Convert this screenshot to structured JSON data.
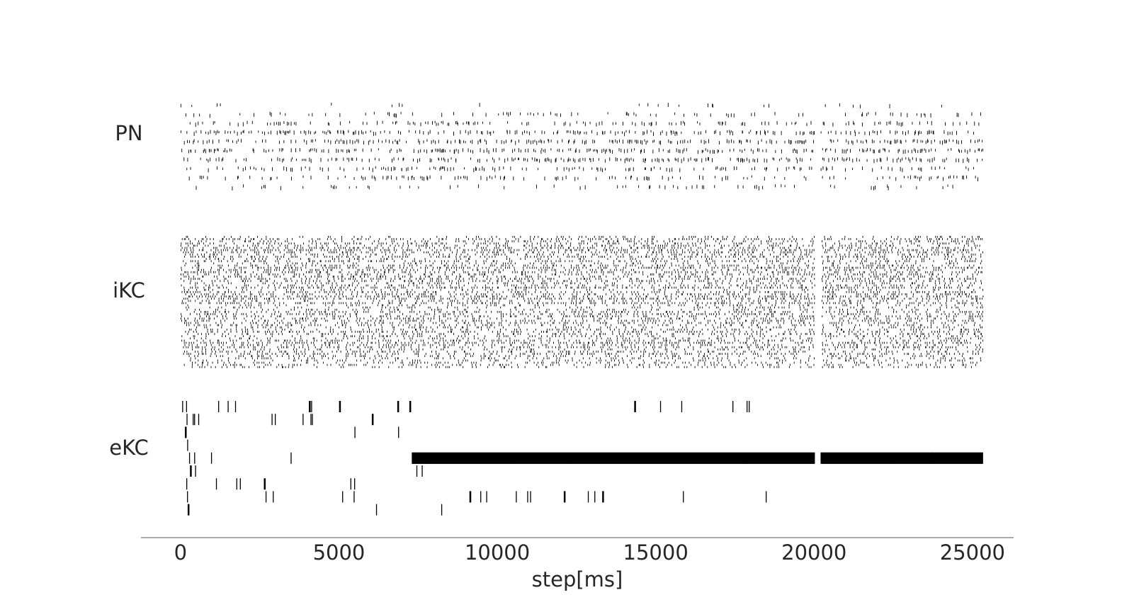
{
  "chart_data": {
    "type": "raster",
    "xlabel": "step[ms]",
    "xlim": [
      -1250,
      26300
    ],
    "xticks": [
      0,
      5000,
      10000,
      15000,
      20000,
      25000
    ],
    "xtick_labels": [
      "0",
      "5000",
      "10000",
      "15000",
      "20000",
      "25000"
    ],
    "data_range": [
      0,
      25300
    ],
    "gap": [
      20000,
      20200
    ],
    "grid": false,
    "groups": [
      {
        "label": "PN",
        "rows": 10,
        "density": "dense",
        "description_rows": "sparse top and bottom rows, dense middle rows"
      },
      {
        "label": "iKC",
        "rows": 60,
        "density": "very dense"
      },
      {
        "label": "eKC",
        "rows": 9,
        "rate_per_1000ms": [
          0.9,
          0.5,
          0.6,
          0.35,
          0.5,
          0.7,
          0.3,
          0.7,
          0.45
        ],
        "row_end_ms": [
          19900,
          7200,
          8600,
          9200,
          25300,
          9200,
          6000,
          19000,
          9200
        ],
        "row_burst": [
          null,
          null,
          null,
          null,
          {
            "start": 7300,
            "end": 25300,
            "note": "continuous firing from ~7300 ms"
          },
          null,
          null,
          null,
          null
        ]
      }
    ]
  }
}
